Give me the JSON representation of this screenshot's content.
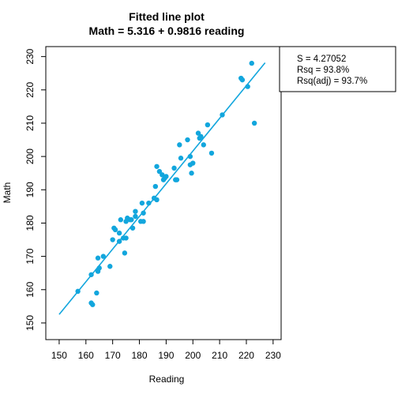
{
  "chart_data": {
    "type": "scatter",
    "title_lines": [
      "Fitted line plot",
      "Math = 5.316 + 0.9816 reading"
    ],
    "xlabel": "Reading",
    "ylabel": "Math",
    "xlim": [
      145,
      233
    ],
    "ylim": [
      145,
      233
    ],
    "xticks": [
      150,
      160,
      170,
      180,
      190,
      200,
      210,
      220,
      230
    ],
    "yticks": [
      150,
      160,
      170,
      180,
      190,
      200,
      210,
      220,
      230
    ],
    "fit": {
      "intercept": 5.316,
      "slope": 0.9816,
      "x_range": [
        150,
        227
      ]
    },
    "stats": [
      "S = 4.27052",
      "Rsq = 93.8%",
      "Rsq(adj) = 93.7%"
    ],
    "colors": {
      "points": "#12a6dd",
      "line": "#12a6dd"
    },
    "points": [
      [
        157,
        159.5
      ],
      [
        162,
        164.5
      ],
      [
        162,
        156
      ],
      [
        162.5,
        155.5
      ],
      [
        164,
        159
      ],
      [
        164.5,
        165.5
      ],
      [
        164.5,
        169.5
      ],
      [
        165,
        166.5
      ],
      [
        166.5,
        170
      ],
      [
        169,
        167
      ],
      [
        170,
        175
      ],
      [
        170.5,
        178.5
      ],
      [
        171,
        178
      ],
      [
        172.5,
        174.5
      ],
      [
        172.5,
        177
      ],
      [
        173,
        181
      ],
      [
        174,
        175.5
      ],
      [
        174.5,
        171
      ],
      [
        175,
        175.5
      ],
      [
        175,
        180.5
      ],
      [
        175.5,
        181.5
      ],
      [
        176.5,
        181
      ],
      [
        177,
        181
      ],
      [
        177.5,
        178.5
      ],
      [
        178.5,
        182
      ],
      [
        178.5,
        183.5
      ],
      [
        180.5,
        180.5
      ],
      [
        181,
        186
      ],
      [
        181.5,
        180.5
      ],
      [
        181.5,
        183
      ],
      [
        183.5,
        186
      ],
      [
        185.5,
        187.5
      ],
      [
        186,
        191
      ],
      [
        186.5,
        187
      ],
      [
        186.5,
        197
      ],
      [
        187.5,
        195.5
      ],
      [
        188.5,
        194.5
      ],
      [
        189,
        193
      ],
      [
        189.5,
        193.5
      ],
      [
        190,
        194
      ],
      [
        193,
        196.5
      ],
      [
        193.5,
        193
      ],
      [
        194,
        193
      ],
      [
        195,
        203.5
      ],
      [
        195.5,
        199.5
      ],
      [
        198,
        205
      ],
      [
        199,
        200
      ],
      [
        199,
        197.5
      ],
      [
        199.5,
        195
      ],
      [
        200,
        198
      ],
      [
        202,
        207
      ],
      [
        202.5,
        205.5
      ],
      [
        203,
        206
      ],
      [
        204,
        203.5
      ],
      [
        205.5,
        209.5
      ],
      [
        207,
        201
      ],
      [
        211,
        212.5
      ],
      [
        218,
        223.5
      ],
      [
        218.5,
        223
      ],
      [
        220.5,
        221
      ],
      [
        222,
        228
      ],
      [
        223,
        210
      ]
    ]
  }
}
